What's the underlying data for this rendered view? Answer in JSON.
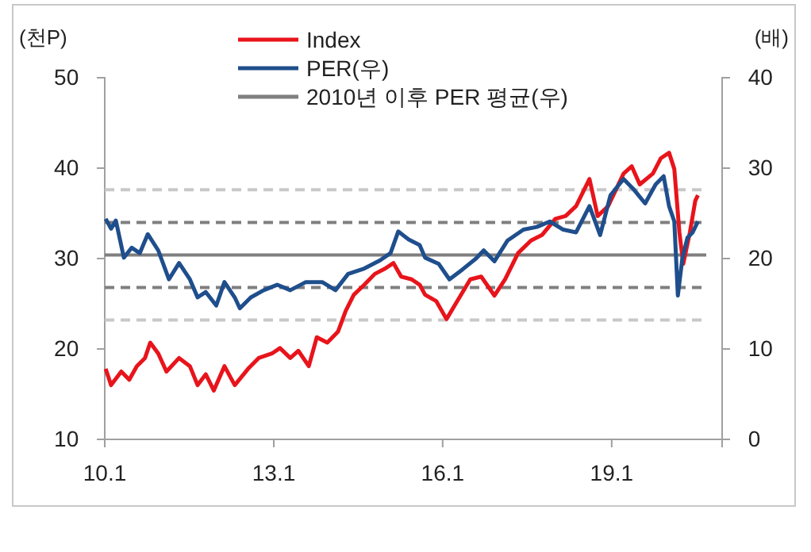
{
  "chart_data": {
    "type": "line",
    "ylabel": "(천P)",
    "y2label": "(배)",
    "legend": "top",
    "xlim": [
      "2010-01-01",
      "2020-12-17"
    ],
    "xticks": [
      {
        "value": "2010-01-01",
        "label": "10.1"
      },
      {
        "value": "2013-01-01",
        "label": "13.1"
      },
      {
        "value": "2016-01-01",
        "label": "16.1"
      },
      {
        "value": "2019-01-01",
        "label": "19.1"
      }
    ],
    "ylim": [
      10,
      50
    ],
    "yticks": [
      10,
      20,
      30,
      40,
      50
    ],
    "y2lim": [
      0,
      40
    ],
    "y2ticks": [
      0,
      10,
      20,
      30,
      40
    ],
    "series": [
      {
        "name": "Index",
        "color": "#e8141b",
        "x": [
          "2010-01-07",
          "2010-02-11",
          "2010-04-18",
          "2010-06-09",
          "2010-07-28",
          "2010-09-19",
          "2010-10-23",
          "2010-12-14",
          "2011-02-05",
          "2011-04-28",
          "2011-07-07",
          "2011-08-26",
          "2011-10-18",
          "2011-12-09",
          "2012-02-16",
          "2012-04-23",
          "2012-07-18",
          "2012-09-25",
          "2012-12-20",
          "2013-02-10",
          "2013-04-18",
          "2013-06-09",
          "2013-08-16",
          "2013-10-07",
          "2013-12-14",
          "2014-02-21",
          "2014-04-12",
          "2014-06-04",
          "2014-08-11",
          "2014-10-18",
          "2014-12-25",
          "2015-02-16",
          "2015-04-07",
          "2015-06-14",
          "2015-08-05",
          "2015-09-09",
          "2015-11-20",
          "2016-01-26",
          "2016-04-05",
          "2016-06-28",
          "2016-09-07",
          "2016-12-02",
          "2017-02-09",
          "2017-05-04",
          "2017-07-27",
          "2017-10-06",
          "2018-01-01",
          "2018-03-08",
          "2018-05-15",
          "2018-08-10",
          "2018-10-02",
          "2018-12-09",
          "2019-01-28",
          "2019-03-19",
          "2019-05-11",
          "2019-07-02",
          "2019-09-25",
          "2019-11-16",
          "2020-01-08",
          "2020-02-11",
          "2020-03-15",
          "2020-04-09",
          "2020-05-22",
          "2020-06-26",
          "2020-07-13"
        ],
        "values": [
          17.8,
          16.0,
          17.5,
          16.6,
          18.1,
          19.0,
          20.7,
          19.5,
          17.5,
          19.0,
          18.1,
          16.0,
          17.2,
          15.4,
          18.1,
          16.0,
          17.8,
          19.0,
          19.5,
          20.1,
          19.0,
          19.8,
          18.1,
          21.3,
          20.7,
          21.9,
          24.2,
          26.0,
          27.1,
          28.3,
          28.9,
          29.5,
          28.0,
          27.7,
          27.1,
          26.0,
          25.3,
          23.3,
          25.3,
          27.7,
          28.0,
          25.9,
          27.7,
          30.6,
          32.0,
          32.6,
          34.4,
          34.7,
          35.8,
          38.8,
          34.7,
          35.8,
          37.6,
          39.4,
          40.2,
          38.2,
          39.4,
          41.1,
          41.7,
          39.9,
          32.9,
          29.4,
          32.9,
          36.4,
          37.0
        ]
      },
      {
        "name": "PER(우)",
        "color": "#1f4e8c",
        "axis": "y2",
        "x": [
          "2010-01-07",
          "2010-02-11",
          "2010-03-14",
          "2010-05-05",
          "2010-06-25",
          "2010-08-16",
          "2010-10-07",
          "2010-12-14",
          "2011-02-21",
          "2011-04-28",
          "2011-07-07",
          "2011-08-26",
          "2011-10-18",
          "2011-12-25",
          "2012-02-16",
          "2012-04-23",
          "2012-05-26",
          "2012-08-05",
          "2012-10-28",
          "2013-01-23",
          "2013-04-18",
          "2013-07-28",
          "2013-11-11",
          "2014-02-05",
          "2014-04-28",
          "2014-08-11",
          "2014-11-21",
          "2015-01-28",
          "2015-03-19",
          "2015-05-26",
          "2015-08-05",
          "2015-09-09",
          "2015-12-07",
          "2016-02-14",
          "2016-05-09",
          "2016-08-04",
          "2016-09-23",
          "2016-12-02",
          "2017-02-25",
          "2017-06-08",
          "2017-09-03",
          "2017-11-26",
          "2018-02-21",
          "2018-05-15",
          "2018-08-10",
          "2018-10-18",
          "2018-12-24",
          "2019-03-19",
          "2019-05-26",
          "2019-08-06",
          "2019-10-13",
          "2019-12-04",
          "2020-01-08",
          "2020-02-11",
          "2020-03-05",
          "2020-04-03",
          "2020-05-06",
          "2020-06-09",
          "2020-07-13"
        ],
        "values": [
          24.4,
          23.3,
          24.2,
          20.1,
          21.2,
          20.6,
          22.7,
          20.9,
          17.7,
          19.5,
          17.7,
          15.7,
          16.3,
          14.8,
          17.4,
          15.7,
          14.5,
          15.7,
          16.5,
          17.1,
          16.5,
          17.4,
          17.4,
          16.5,
          18.3,
          18.9,
          19.8,
          20.6,
          23.0,
          22.1,
          21.5,
          20.1,
          19.4,
          17.7,
          18.8,
          20.0,
          20.9,
          19.7,
          22.0,
          23.2,
          23.5,
          24.1,
          23.2,
          22.9,
          25.8,
          22.6,
          27.0,
          28.8,
          27.6,
          26.1,
          28.2,
          29.1,
          25.8,
          24.1,
          15.9,
          20.0,
          22.3,
          22.9,
          24.1
        ]
      }
    ],
    "ref_lines": [
      {
        "axis": "y2",
        "value": 20.4,
        "label": "2010년 이후 PER 평균(우)",
        "color": "#7f7f7f",
        "line_style": "solid"
      },
      {
        "axis": "y2",
        "value": 24.0,
        "color": "#7f7f7f",
        "line_style": "dashed"
      },
      {
        "axis": "y2",
        "value": 16.8,
        "color": "#7f7f7f",
        "line_style": "dashed"
      },
      {
        "axis": "y2",
        "value": 27.6,
        "color": "#c8c8c8",
        "line_style": "dashed"
      },
      {
        "axis": "y2",
        "value": 13.2,
        "color": "#c8c8c8",
        "line_style": "dashed"
      }
    ]
  }
}
